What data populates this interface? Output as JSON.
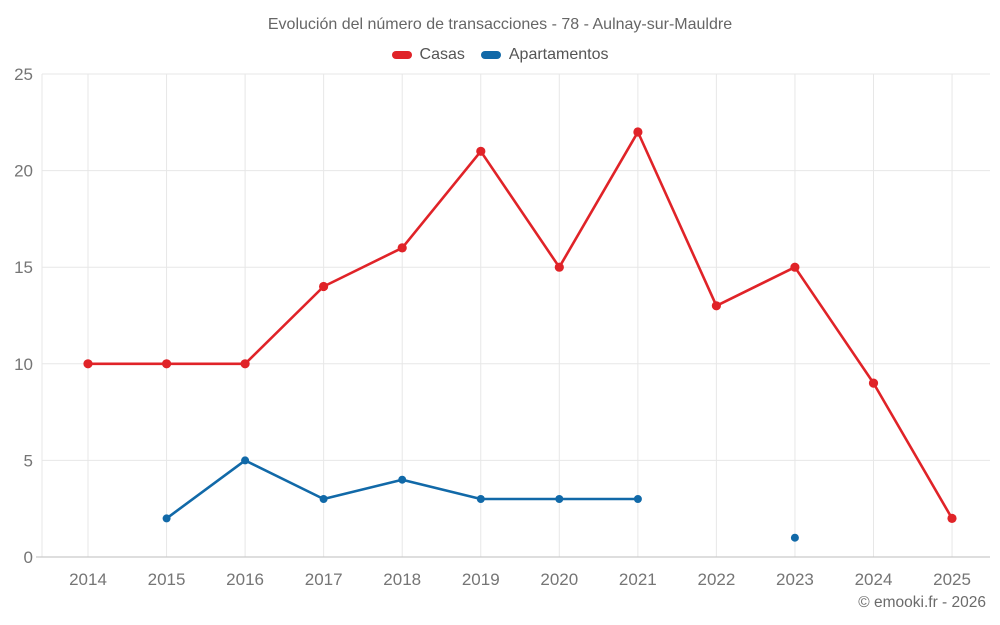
{
  "title": "Evolución del número de transacciones - 78 - Aulnay-sur-Mauldre",
  "footer": "© emooki.fr - 2026",
  "colors": {
    "casas": "#e02328",
    "apartamentos": "#1169a8",
    "gridline": "#e7e7e7",
    "axis_line": "#c9c9c9",
    "axis_label": "#757575",
    "title_text": "#666666",
    "legend_text": "#555555",
    "background": "#ffffff"
  },
  "chart_data": {
    "type": "line",
    "title": "Evolución del número de transacciones - 78 - Aulnay-sur-Mauldre",
    "xlabel": "",
    "ylabel": "",
    "categories": [
      "2014",
      "2015",
      "2016",
      "2017",
      "2018",
      "2019",
      "2020",
      "2021",
      "2022",
      "2023",
      "2024",
      "2025"
    ],
    "series": [
      {
        "name": "Casas",
        "color": "#e02328",
        "values": [
          10,
          10,
          10,
          14,
          16,
          21,
          15,
          22,
          13,
          15,
          9,
          2
        ]
      },
      {
        "name": "Apartamentos",
        "color": "#1169a8",
        "values": [
          null,
          2,
          5,
          3,
          4,
          3,
          3,
          3,
          null,
          1,
          null,
          null
        ]
      }
    ],
    "ylim": [
      0,
      25
    ],
    "yticks": [
      0,
      5,
      10,
      15,
      20,
      25
    ],
    "grid": true,
    "legend_position": "top"
  }
}
